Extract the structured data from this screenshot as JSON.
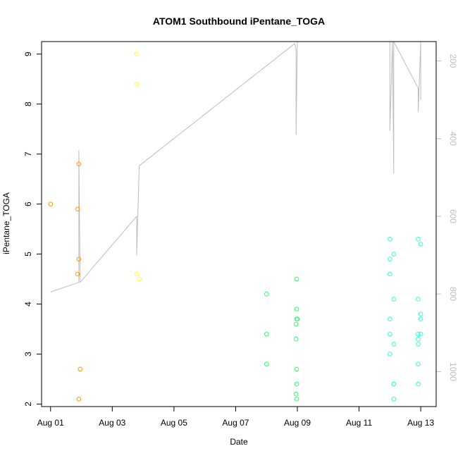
{
  "chart_data": {
    "type": "scatter",
    "title": "ATOM1 Southbound iPentane_TOGA",
    "xlabel": "Date",
    "ylabel": "iPentane_TOGA",
    "xlim": [
      "2016-07-31T17:00",
      "2016-08-13T12:00"
    ],
    "ylim": [
      1.95,
      9.25
    ],
    "x_ticks": [
      {
        "date": "2016-08-01",
        "label": "Aug 01"
      },
      {
        "date": "2016-08-03",
        "label": "Aug 03"
      },
      {
        "date": "2016-08-05",
        "label": "Aug 05"
      },
      {
        "date": "2016-08-07",
        "label": "Aug 07"
      },
      {
        "date": "2016-08-09",
        "label": "Aug 09"
      },
      {
        "date": "2016-08-11",
        "label": "Aug 11"
      },
      {
        "date": "2016-08-13",
        "label": "Aug 13"
      }
    ],
    "y_ticks": [
      2,
      3,
      4,
      5,
      6,
      7,
      8,
      9
    ],
    "secondary_axis": {
      "side": "right",
      "reversed": true,
      "ylim": [
        1090,
        150
      ],
      "ticks": [
        200,
        400,
        600,
        800,
        1000
      ],
      "color": "#bdbdbd"
    },
    "grid": false,
    "legend": "none",
    "series": [
      {
        "color": "#ff9900",
        "points": [
          {
            "x": "2016-08-01T00:00",
            "y": 6.0
          },
          {
            "x": "2016-08-01T21:00",
            "y": 5.9
          },
          {
            "x": "2016-08-01T21:00",
            "y": 4.6
          },
          {
            "x": "2016-08-01T22:00",
            "y": 6.8
          },
          {
            "x": "2016-08-01T22:00",
            "y": 4.9
          },
          {
            "x": "2016-08-01T22:00",
            "y": 2.1
          },
          {
            "x": "2016-08-01T23:00",
            "y": 2.7
          }
        ]
      },
      {
        "color": "#ffff33",
        "points": [
          {
            "x": "2016-08-03T19:00",
            "y": 9.0
          },
          {
            "x": "2016-08-03T19:00",
            "y": 8.4
          },
          {
            "x": "2016-08-03T19:00",
            "y": 4.6
          },
          {
            "x": "2016-08-03T21:00",
            "y": 4.5
          }
        ]
      },
      {
        "color": "#33ff66",
        "points": [
          {
            "x": "2016-08-08T00:00",
            "y": 4.2
          },
          {
            "x": "2016-08-08T00:00",
            "y": 3.4
          },
          {
            "x": "2016-08-08T00:00",
            "y": 2.8
          },
          {
            "x": "2016-08-08T23:00",
            "y": 3.6
          },
          {
            "x": "2016-08-08T23:00",
            "y": 3.3
          },
          {
            "x": "2016-08-08T23:00",
            "y": 2.2
          },
          {
            "x": "2016-08-08T23:30",
            "y": 4.5
          },
          {
            "x": "2016-08-08T23:30",
            "y": 3.9
          },
          {
            "x": "2016-08-08T23:30",
            "y": 3.7
          },
          {
            "x": "2016-08-08T23:30",
            "y": 2.7
          },
          {
            "x": "2016-08-08T23:30",
            "y": 2.4
          },
          {
            "x": "2016-08-08T23:30",
            "y": 2.1
          },
          {
            "x": "2016-08-09T00:00",
            "y": 3.7
          }
        ]
      },
      {
        "color": "#33ffcc",
        "points": [
          {
            "x": "2016-08-12T00:00",
            "y": 5.3
          },
          {
            "x": "2016-08-12T00:00",
            "y": 4.9
          },
          {
            "x": "2016-08-12T00:00",
            "y": 4.6
          },
          {
            "x": "2016-08-12T00:00",
            "y": 3.7
          },
          {
            "x": "2016-08-12T00:00",
            "y": 3.4
          },
          {
            "x": "2016-08-12T00:00",
            "y": 3.0
          },
          {
            "x": "2016-08-12T03:00",
            "y": 5.0
          },
          {
            "x": "2016-08-12T03:00",
            "y": 4.1
          },
          {
            "x": "2016-08-12T03:00",
            "y": 3.2
          },
          {
            "x": "2016-08-12T03:00",
            "y": 2.4
          },
          {
            "x": "2016-08-12T03:00",
            "y": 2.4
          },
          {
            "x": "2016-08-12T03:00",
            "y": 2.1
          },
          {
            "x": "2016-08-12T22:00",
            "y": 5.3
          },
          {
            "x": "2016-08-12T22:00",
            "y": 4.1
          },
          {
            "x": "2016-08-12T22:00",
            "y": 3.4
          },
          {
            "x": "2016-08-12T22:00",
            "y": 3.3
          },
          {
            "x": "2016-08-12T22:00",
            "y": 3.2
          },
          {
            "x": "2016-08-12T22:00",
            "y": 2.8
          },
          {
            "x": "2016-08-12T22:00",
            "y": 2.4
          },
          {
            "x": "2016-08-13T00:00",
            "y": 5.2
          },
          {
            "x": "2016-08-13T00:00",
            "y": 3.8
          },
          {
            "x": "2016-08-13T00:00",
            "y": 3.7
          },
          {
            "x": "2016-08-13T00:00",
            "y": 3.4
          }
        ]
      }
    ],
    "secondary_line": {
      "color": "#bdbdbd",
      "points": [
        {
          "x": "2016-08-01T00:00",
          "y": 795
        },
        {
          "x": "2016-08-01T22:00",
          "y": 770
        },
        {
          "x": "2016-08-01T22:00",
          "y": 670
        },
        {
          "x": "2016-08-01T22:00",
          "y": 430
        },
        {
          "x": "2016-08-01T23:00",
          "y": 770
        },
        {
          "x": "2016-08-03T19:00",
          "y": 600
        },
        {
          "x": "2016-08-03T19:00",
          "y": 700
        },
        {
          "x": "2016-08-03T21:00",
          "y": 470
        },
        {
          "x": "2016-08-08T22:00",
          "y": 155
        },
        {
          "x": "2016-08-08T23:00",
          "y": 170
        },
        {
          "x": "2016-08-08T23:00",
          "y": 390
        },
        {
          "x": "2016-08-09T00:00",
          "y": 150
        },
        {
          "x": "2016-08-10T20:00",
          "y": 150
        },
        {
          "x": "2016-08-12T00:00",
          "y": 150
        },
        {
          "x": "2016-08-12T00:00",
          "y": 320
        },
        {
          "x": "2016-08-12T00:00",
          "y": 380
        },
        {
          "x": "2016-08-12T02:00",
          "y": 150
        },
        {
          "x": "2016-08-12T03:00",
          "y": 490
        },
        {
          "x": "2016-08-12T03:00",
          "y": 150
        },
        {
          "x": "2016-08-12T22:00",
          "y": 270
        },
        {
          "x": "2016-08-12T22:00",
          "y": 330
        },
        {
          "x": "2016-08-13T00:00",
          "y": 150
        },
        {
          "x": "2016-08-13T00:00",
          "y": 300
        }
      ]
    }
  }
}
